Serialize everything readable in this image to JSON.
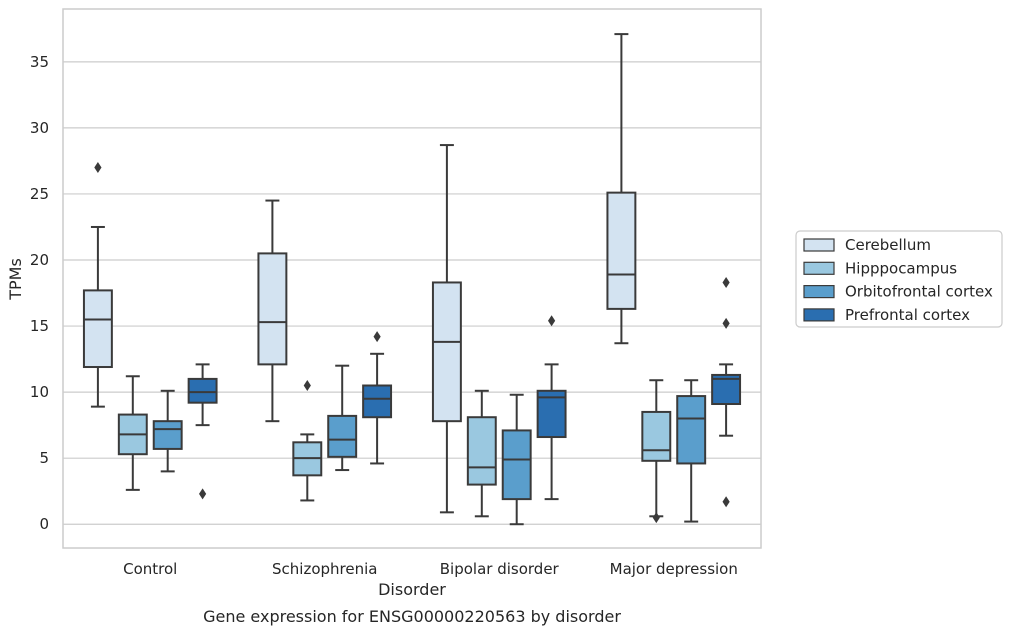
{
  "chart_data": {
    "type": "box",
    "title": "Gene expression for ENSG00000220563 by disorder",
    "xlabel": "Disorder",
    "ylabel": "TPMs",
    "ylim": [
      -1.8,
      39
    ],
    "yticks": [
      0,
      5,
      10,
      15,
      20,
      25,
      30,
      35
    ],
    "grid": "horizontal",
    "legend_placement": "right",
    "categories": [
      "Control",
      "Schizophrenia",
      "Bipolar disorder",
      "Major depression"
    ],
    "series": [
      {
        "name": "Cerebellum",
        "color": "#d3e3f1",
        "boxes": [
          {
            "whisker_low": 8.9,
            "q1": 11.9,
            "median": 15.5,
            "q3": 17.7,
            "whisker_high": 22.5,
            "outliers": [
              27.0
            ]
          },
          {
            "whisker_low": 7.8,
            "q1": 12.1,
            "median": 15.3,
            "q3": 20.5,
            "whisker_high": 24.5,
            "outliers": []
          },
          {
            "whisker_low": 0.9,
            "q1": 7.8,
            "median": 13.8,
            "q3": 18.3,
            "whisker_high": 28.7,
            "outliers": []
          },
          {
            "whisker_low": 13.7,
            "q1": 16.3,
            "median": 18.9,
            "q3": 25.1,
            "whisker_high": 37.1,
            "outliers": []
          }
        ]
      },
      {
        "name": "Hipppocampus",
        "color": "#9ac8e0",
        "boxes": [
          {
            "whisker_low": 2.6,
            "q1": 5.3,
            "median": 6.8,
            "q3": 8.3,
            "whisker_high": 11.2,
            "outliers": []
          },
          {
            "whisker_low": 1.8,
            "q1": 3.7,
            "median": 5.0,
            "q3": 6.2,
            "whisker_high": 6.8,
            "outliers": [
              10.5
            ]
          },
          {
            "whisker_low": 0.6,
            "q1": 3.0,
            "median": 4.3,
            "q3": 8.1,
            "whisker_high": 10.1,
            "outliers": []
          },
          {
            "whisker_low": 0.6,
            "q1": 4.8,
            "median": 5.6,
            "q3": 8.5,
            "whisker_high": 10.9,
            "outliers": [
              0.5
            ]
          }
        ]
      },
      {
        "name": "Orbitofrontal cortex",
        "color": "#5a9ecc",
        "boxes": [
          {
            "whisker_low": 4.0,
            "q1": 5.7,
            "median": 7.2,
            "q3": 7.8,
            "whisker_high": 10.1,
            "outliers": []
          },
          {
            "whisker_low": 4.1,
            "q1": 5.1,
            "median": 6.4,
            "q3": 8.2,
            "whisker_high": 12.0,
            "outliers": []
          },
          {
            "whisker_low": 0.0,
            "q1": 1.9,
            "median": 4.9,
            "q3": 7.1,
            "whisker_high": 9.8,
            "outliers": []
          },
          {
            "whisker_low": 0.2,
            "q1": 4.6,
            "median": 8.0,
            "q3": 9.7,
            "whisker_high": 10.9,
            "outliers": []
          }
        ]
      },
      {
        "name": "Prefrontal cortex",
        "color": "#2a6eb0",
        "boxes": [
          {
            "whisker_low": 7.5,
            "q1": 9.2,
            "median": 10.0,
            "q3": 11.0,
            "whisker_high": 12.1,
            "outliers": [
              2.3
            ]
          },
          {
            "whisker_low": 4.6,
            "q1": 8.1,
            "median": 9.5,
            "q3": 10.5,
            "whisker_high": 12.9,
            "outliers": [
              14.2
            ]
          },
          {
            "whisker_low": 1.9,
            "q1": 6.6,
            "median": 9.6,
            "q3": 10.1,
            "whisker_high": 12.1,
            "outliers": [
              15.4
            ]
          },
          {
            "whisker_low": 6.7,
            "q1": 9.1,
            "median": 11.0,
            "q3": 11.3,
            "whisker_high": 12.1,
            "outliers": [
              1.7,
              15.2,
              18.3
            ]
          }
        ]
      }
    ]
  }
}
